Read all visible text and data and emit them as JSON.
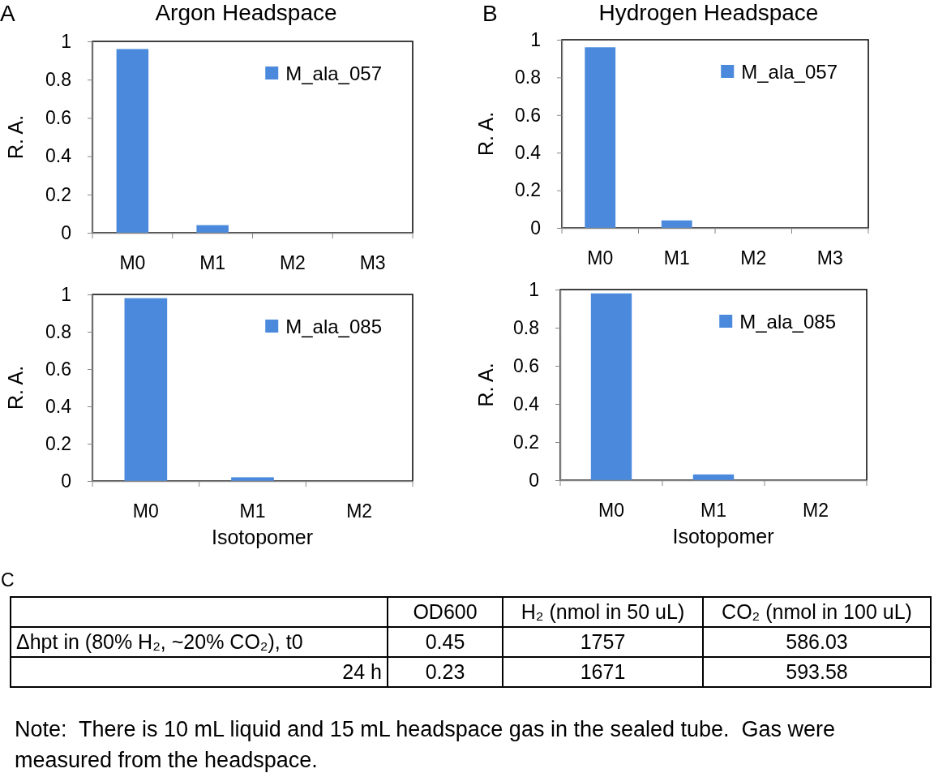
{
  "chart_data": [
    {
      "type": "bar",
      "title": "Argon Headspace",
      "ylabel": "R. A.",
      "annotations": [
        "A"
      ],
      "categories": [
        "M0",
        "M1",
        "M2",
        "M3"
      ],
      "series": [
        {
          "name": "M_ala_057",
          "color": "#4a89dc",
          "values": [
            0.96,
            0.04,
            0,
            0
          ]
        }
      ],
      "ylim": [
        0,
        1
      ],
      "yticks": [
        0,
        0.2,
        0.4,
        0.6,
        0.8,
        1
      ],
      "legend": "top right"
    },
    {
      "type": "bar",
      "title": "Hydrogen Headspace",
      "ylabel": "R. A.",
      "annotations": [
        "B"
      ],
      "categories": [
        "M0",
        "M1",
        "M2",
        "M3"
      ],
      "series": [
        {
          "name": "M_ala_057",
          "color": "#4a89dc",
          "values": [
            0.96,
            0.04,
            0,
            0
          ]
        }
      ],
      "ylim": [
        0,
        1
      ],
      "yticks": [
        0,
        0.2,
        0.4,
        0.6,
        0.8,
        1
      ],
      "legend": "top right"
    },
    {
      "type": "bar",
      "xlabel": "Isotopomer",
      "ylabel": "R. A.",
      "categories": [
        "M0",
        "M1",
        "M2"
      ],
      "series": [
        {
          "name": "M_ala_085",
          "color": "#4a89dc",
          "values": [
            0.98,
            0.02,
            0
          ]
        }
      ],
      "ylim": [
        0,
        1
      ],
      "yticks": [
        0,
        0.2,
        0.4,
        0.6,
        0.8,
        1
      ],
      "legend": "top right"
    },
    {
      "type": "bar",
      "xlabel": "Isotopomer",
      "ylabel": "R. A.",
      "categories": [
        "M0",
        "M1",
        "M2"
      ],
      "series": [
        {
          "name": "M_ala_085",
          "color": "#4a89dc",
          "values": [
            0.98,
            0.03,
            0
          ]
        }
      ],
      "ylim": [
        0,
        1
      ],
      "yticks": [
        0,
        0.2,
        0.4,
        0.6,
        0.8,
        1
      ],
      "legend": "top right"
    },
    {
      "type": "other",
      "annotations": [
        "C",
        "Note:  There is 10 mL liquid and 15 mL headspace gas in the sealed tube.  Gas were measured from the headspace."
      ],
      "categories": [
        "OD600",
        "H₂ (nmol in 50 uL)",
        "CO₂ (nmol in 100 uL)"
      ],
      "y_categories": [
        "Δhpt in (80% H₂, ~20% CO₂), t0",
        "24 h"
      ],
      "cell_labels": [
        [
          "0.45",
          "1757",
          "586.03"
        ],
        [
          "0.23",
          "1671",
          "593.58"
        ]
      ]
    }
  ]
}
